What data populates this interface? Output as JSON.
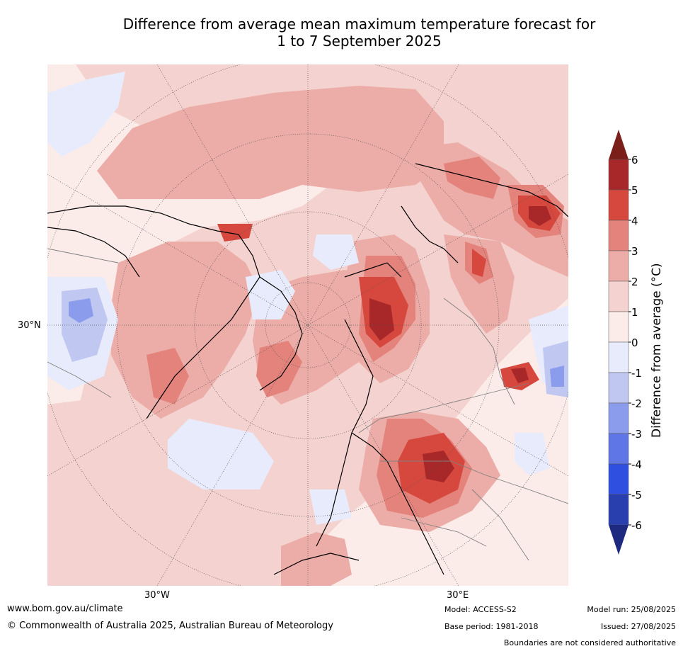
{
  "title": {
    "line1": "Difference from average mean maximum temperature forecast for",
    "line2": "1 to 7 September 2025"
  },
  "map": {
    "lat_label": "30°N",
    "lon_labels": [
      "30°W",
      "30°E"
    ]
  },
  "colorbar": {
    "label": "Difference from average (°C)",
    "levels": [
      "6",
      "5",
      "4",
      "3",
      "2",
      "1",
      "0",
      "-1",
      "-2",
      "-3",
      "-4",
      "-5",
      "-6"
    ],
    "colors": [
      "#a8282a",
      "#d6483e",
      "#e4837c",
      "#ecaca7",
      "#f4d2cf",
      "#fbecea",
      "#e8ebfb",
      "#c0c8f2",
      "#8b9cec",
      "#5f76e6",
      "#2f4fe0",
      "#2a3fae"
    ],
    "top_extend_color": "#7a1f1a",
    "bottom_extend_color": "#1e2a80"
  },
  "footer": {
    "website": "www.bom.gov.au/climate",
    "copyright": "© Commonwealth of Australia 2025, Australian Bureau of Meteorology",
    "model": "Model: ACCESS-S2",
    "base_period": "Base period: 1981-2018",
    "model_run": "Model run: 25/08/2025",
    "issued": "Issued: 27/08/2025",
    "disclaimer": "Boundaries are not considered authoritative"
  }
}
